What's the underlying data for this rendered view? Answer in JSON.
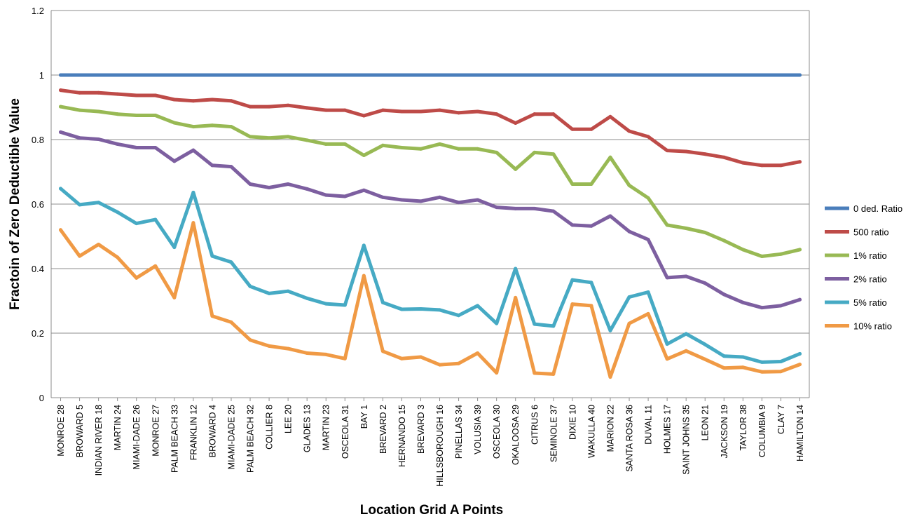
{
  "chart_data": {
    "type": "line",
    "title": "",
    "xlabel": "Location Grid A Points",
    "ylabel": "Fractoin  of Zero Deductible Value",
    "ylim": [
      0,
      1.2
    ],
    "yticks": [
      "0",
      "0.2",
      "0.4",
      "0.6",
      "0.8",
      "1",
      "1.2"
    ],
    "grid": "horizontal",
    "legend_position": "right",
    "categories": [
      "MONROE 28",
      "BROWARD 5",
      "INDIAN RIVER 18",
      "MARTIN 24",
      "MIAMI-DADE 26",
      "MONROE 27",
      "PALM BEACH 33",
      "FRANKLIN 12",
      "BROWARD 4",
      "MIAMI-DADE 25",
      "PALM BEACH 32",
      "COLLIER 8",
      "LEE 20",
      "GLADES 13",
      "MARTIN 23",
      "OSCEOLA 31",
      "BAY 1",
      "BREVARD 2",
      "HERNANDO 15",
      "BREVARD 3",
      "HILLSBOROUGH 16",
      "PINELLAS 34",
      "VOLUSIA 39",
      "OSCEOLA 30",
      "OKALOOSA 29",
      "CITRUS 6",
      "SEMINOLE 37",
      "DIXIE 10",
      "WAKULLA 40",
      "MARION 22",
      "SANTA ROSA 36",
      "DUVAL 11",
      "HOLMES 17",
      "SAINT JOHNS 35",
      "LEON 21",
      "JACKSON 19",
      "TAYLOR 38",
      "COLUMBIA 9",
      "CLAY 7",
      "HAMILTON 14"
    ],
    "series": [
      {
        "name": "0 ded. Ratio",
        "color": "#4a7ebb",
        "values": [
          1,
          1,
          1,
          1,
          1,
          1,
          1,
          1,
          1,
          1,
          1,
          1,
          1,
          1,
          1,
          1,
          1,
          1,
          1,
          1,
          1,
          1,
          1,
          1,
          1,
          1,
          1,
          1,
          1,
          1,
          1,
          1,
          1,
          1,
          1,
          1,
          1,
          1,
          1,
          1
        ]
      },
      {
        "name": "500 ratio",
        "color": "#be4b48",
        "values": [
          0.953,
          0.945,
          0.945,
          0.941,
          0.937,
          0.937,
          0.924,
          0.92,
          0.924,
          0.92,
          0.902,
          0.902,
          0.906,
          0.898,
          0.891,
          0.891,
          0.874,
          0.891,
          0.887,
          0.887,
          0.891,
          0.883,
          0.887,
          0.879,
          0.851,
          0.879,
          0.879,
          0.832,
          0.832,
          0.871,
          0.826,
          0.809,
          0.766,
          0.763,
          0.755,
          0.745,
          0.728,
          0.72,
          0.72,
          0.731
        ]
      },
      {
        "name": "1% ratio",
        "color": "#98b954",
        "values": [
          0.902,
          0.891,
          0.887,
          0.879,
          0.875,
          0.875,
          0.852,
          0.84,
          0.844,
          0.84,
          0.809,
          0.805,
          0.809,
          0.798,
          0.786,
          0.786,
          0.751,
          0.782,
          0.775,
          0.771,
          0.786,
          0.771,
          0.771,
          0.76,
          0.708,
          0.76,
          0.755,
          0.662,
          0.662,
          0.745,
          0.658,
          0.619,
          0.535,
          0.525,
          0.512,
          0.487,
          0.459,
          0.438,
          0.445,
          0.459
        ]
      },
      {
        "name": "2% ratio",
        "color": "#7d5fa0",
        "values": [
          0.823,
          0.805,
          0.801,
          0.786,
          0.775,
          0.775,
          0.733,
          0.767,
          0.72,
          0.716,
          0.662,
          0.651,
          0.662,
          0.647,
          0.628,
          0.624,
          0.643,
          0.621,
          0.613,
          0.609,
          0.621,
          0.605,
          0.613,
          0.59,
          0.586,
          0.586,
          0.578,
          0.535,
          0.532,
          0.563,
          0.515,
          0.49,
          0.372,
          0.376,
          0.355,
          0.32,
          0.295,
          0.279,
          0.285,
          0.304
        ]
      },
      {
        "name": "5% ratio",
        "color": "#46aac4",
        "values": [
          0.648,
          0.598,
          0.605,
          0.575,
          0.54,
          0.552,
          0.466,
          0.636,
          0.439,
          0.42,
          0.345,
          0.323,
          0.33,
          0.308,
          0.291,
          0.287,
          0.472,
          0.295,
          0.274,
          0.275,
          0.272,
          0.255,
          0.285,
          0.23,
          0.4,
          0.228,
          0.222,
          0.365,
          0.357,
          0.208,
          0.312,
          0.327,
          0.166,
          0.198,
          0.165,
          0.129,
          0.126,
          0.11,
          0.112,
          0.136
        ]
      },
      {
        "name": "10% ratio",
        "color": "#f09a45",
        "values": [
          0.52,
          0.439,
          0.475,
          0.435,
          0.371,
          0.408,
          0.31,
          0.542,
          0.253,
          0.234,
          0.179,
          0.16,
          0.152,
          0.138,
          0.134,
          0.121,
          0.378,
          0.144,
          0.121,
          0.126,
          0.102,
          0.106,
          0.138,
          0.077,
          0.31,
          0.076,
          0.073,
          0.29,
          0.285,
          0.064,
          0.23,
          0.26,
          0.12,
          0.145,
          0.119,
          0.092,
          0.094,
          0.08,
          0.081,
          0.103
        ]
      }
    ]
  }
}
